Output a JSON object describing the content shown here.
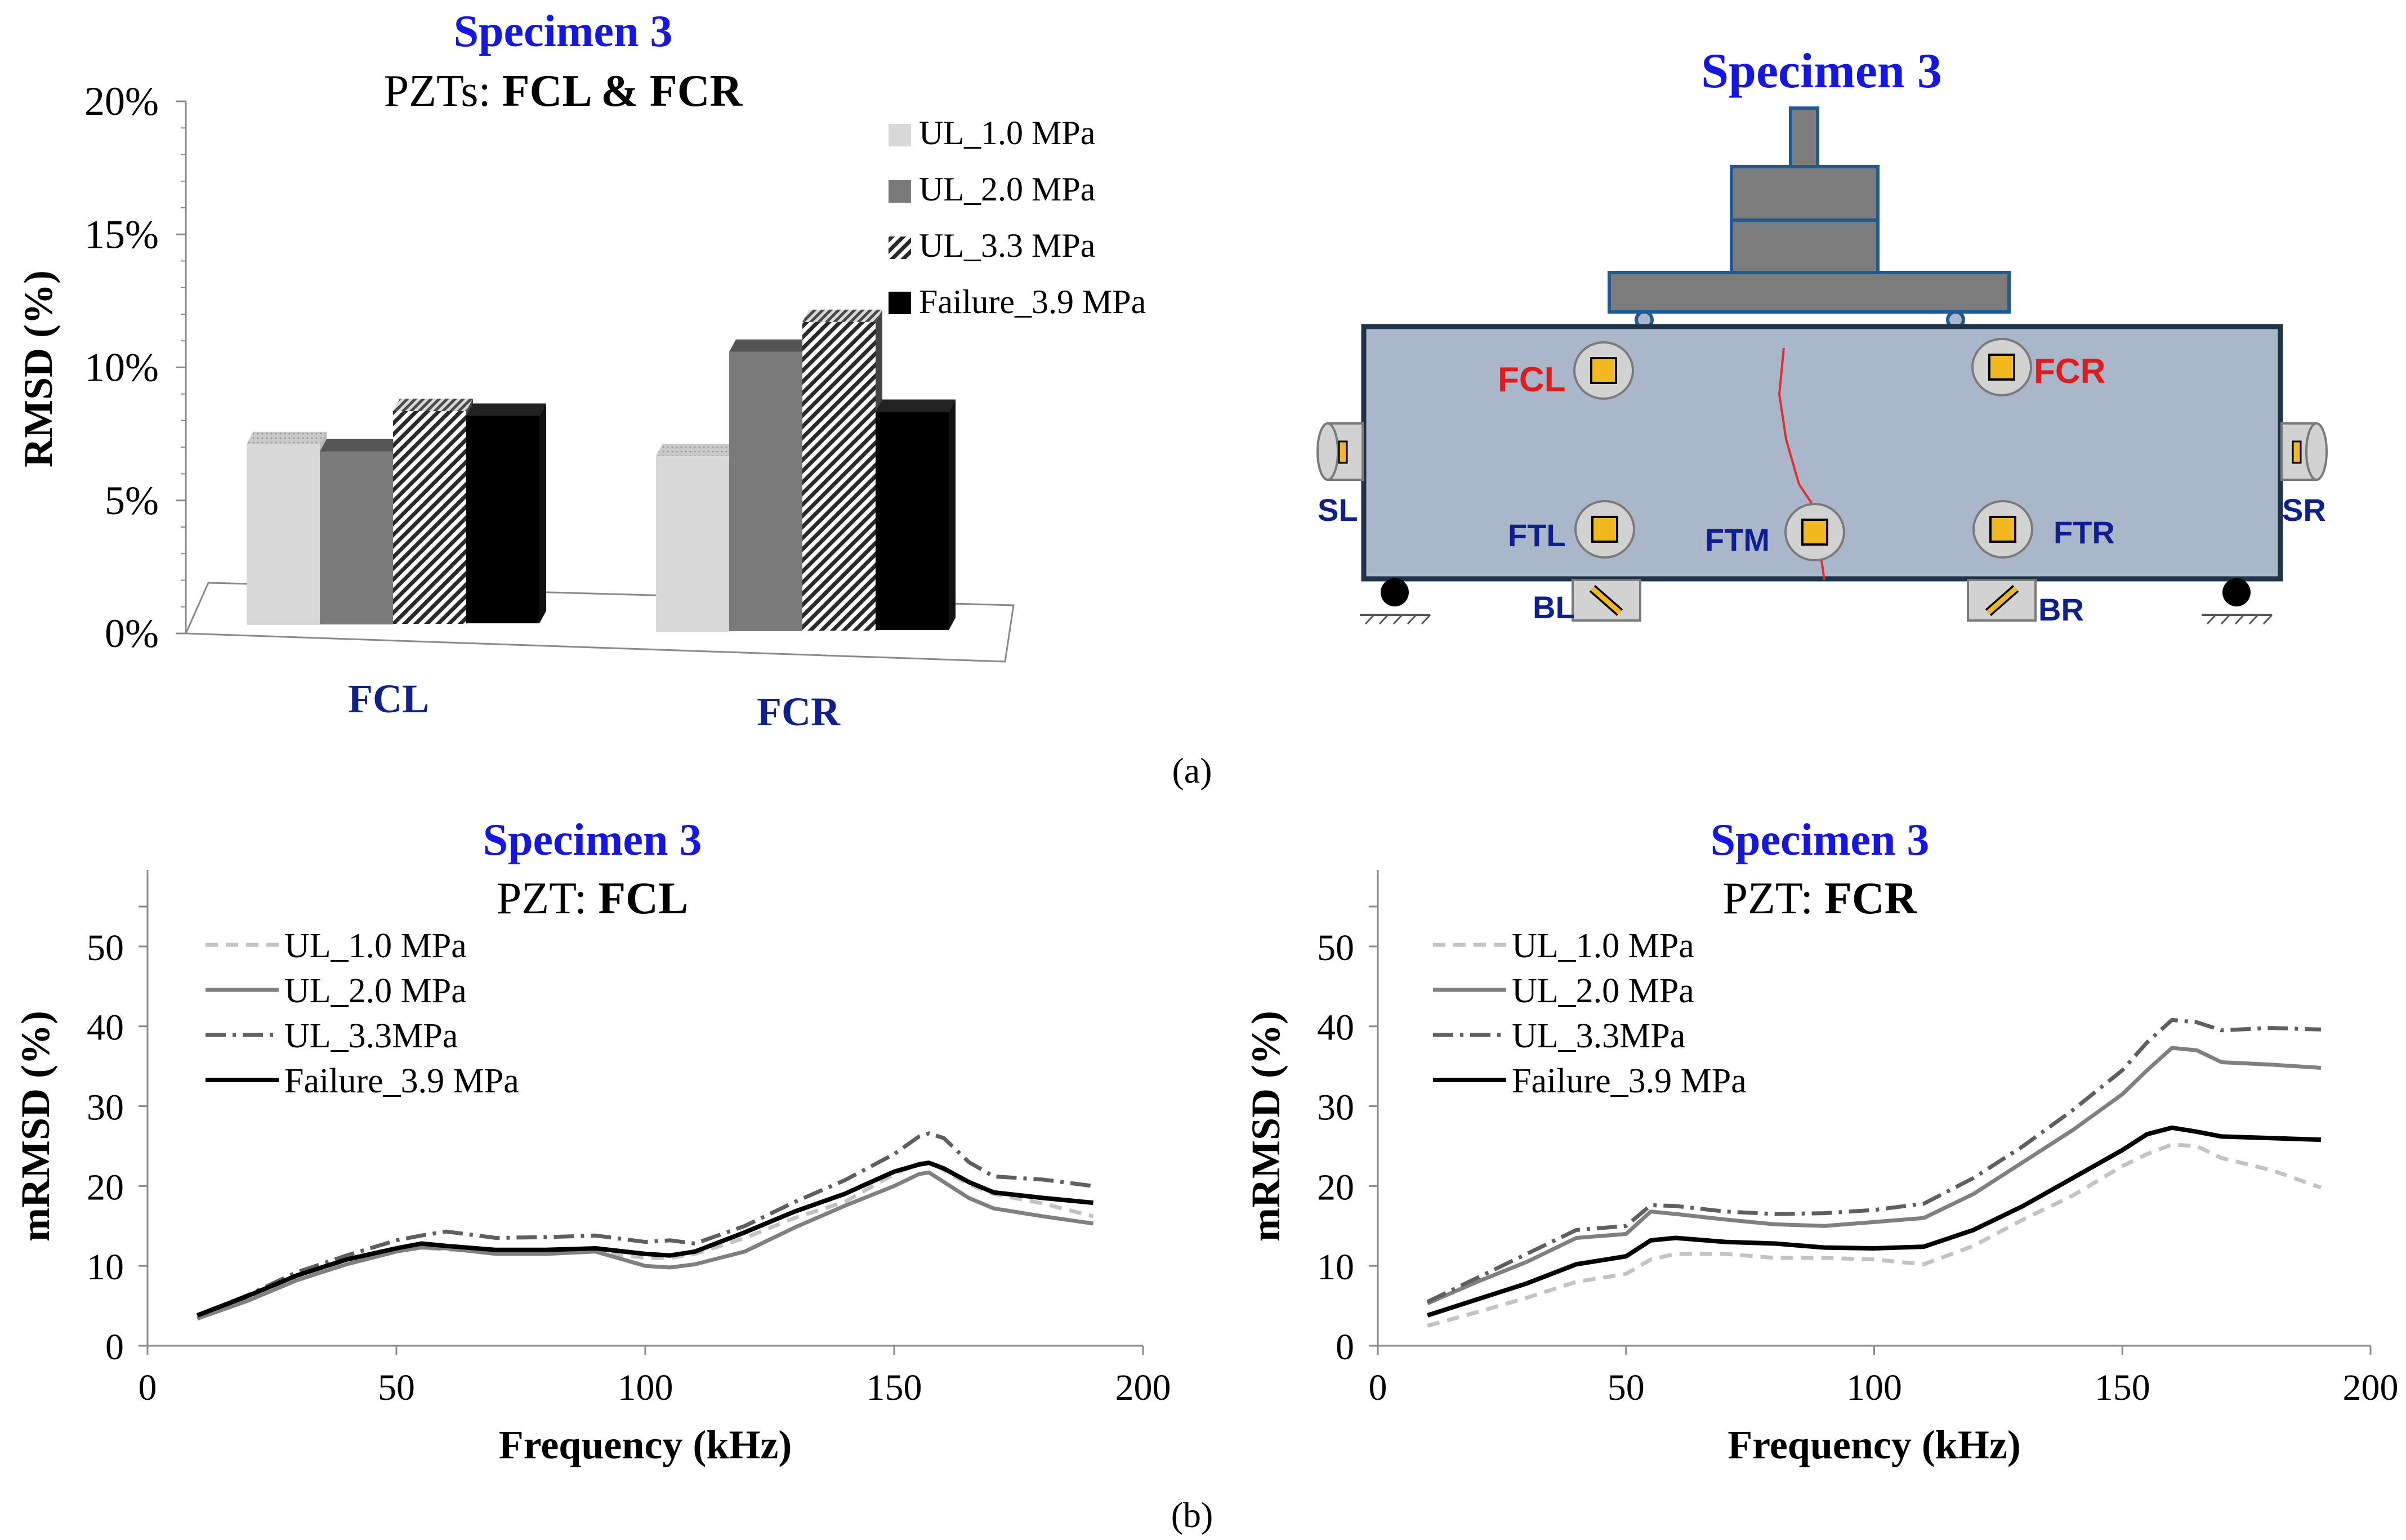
{
  "colors": {
    "title_blue": "#1515e6",
    "label_navy": "#0f1f8f",
    "beam_fill": "#aab7cb",
    "beam_stroke": "#1f3349",
    "steel_fill": "#7c7c7c",
    "steel_stroke": "#1f5a97",
    "pzt_yellow": "#f2b820",
    "red_label": "#e01b1b",
    "crack": "#e0302a"
  },
  "panel_labels": {
    "a": "(a)",
    "b": "(b)"
  },
  "chart_data": [
    {
      "type": "bar",
      "title": "Specimen 3",
      "subtitle_prefix": "PZTs: ",
      "subtitle_bold": "FCL & FCR",
      "xlabel": "",
      "ylabel": "RMSD (%)",
      "ylim": [
        0,
        20
      ],
      "yticks": [
        "0%",
        "5%",
        "10%",
        "15%",
        "20%"
      ],
      "categories": [
        "FCL",
        "FCR"
      ],
      "series": [
        {
          "name": "UL_1.0 MPa",
          "values": [
            6.8,
            6.6
          ],
          "pattern": "light"
        },
        {
          "name": "UL_2.0 MPa",
          "values": [
            6.5,
            10.5
          ],
          "pattern": "dark"
        },
        {
          "name": "UL_3.3 MPa",
          "values": [
            8.0,
            11.6
          ],
          "pattern": "hatched"
        },
        {
          "name": "Failure_3.9 MPa",
          "values": [
            7.8,
            8.2
          ],
          "pattern": "black"
        }
      ],
      "legend_position": "top-right",
      "style": "3d"
    },
    {
      "type": "line",
      "title": "Specimen 3",
      "subtitle_prefix": "PZT: ",
      "subtitle_bold": "FCL",
      "xlabel": "Frequency (kHz)",
      "ylabel": "mRMSD (%)",
      "xlim": [
        0,
        200
      ],
      "ylim": [
        0,
        55
      ],
      "xticks": [
        0,
        50,
        100,
        150,
        200
      ],
      "yticks": [
        0,
        10,
        20,
        30,
        40,
        50
      ],
      "x": [
        10,
        20,
        30,
        40,
        50,
        55,
        60,
        70,
        80,
        90,
        100,
        105,
        110,
        120,
        130,
        140,
        150,
        155,
        157,
        160,
        165,
        170,
        180,
        190
      ],
      "series": [
        {
          "name": "UL_1.0 MPa",
          "style": "dashed",
          "color": "#c3c3c3",
          "values": [
            3.6,
            6.0,
            8.6,
            10.5,
            12.0,
            12.3,
            12.0,
            11.8,
            11.5,
            11.8,
            11.0,
            11.0,
            11.5,
            13.5,
            16.0,
            18.0,
            21.5,
            22.8,
            23.0,
            22.0,
            20.2,
            19.0,
            17.8,
            16.2
          ]
        },
        {
          "name": "UL_2.0 MPa",
          "style": "solid",
          "color": "#808080",
          "values": [
            3.4,
            5.6,
            8.2,
            10.2,
            11.8,
            12.3,
            12.2,
            11.5,
            11.5,
            11.8,
            10.0,
            9.8,
            10.2,
            11.8,
            14.8,
            17.5,
            20.0,
            21.5,
            21.7,
            20.5,
            18.5,
            17.2,
            16.2,
            15.3
          ]
        },
        {
          "name": "UL_3.3MPa",
          "style": "dashdot",
          "color": "#5f5f5f",
          "values": [
            3.8,
            6.3,
            9.2,
            11.3,
            13.2,
            13.8,
            14.3,
            13.5,
            13.6,
            13.8,
            13.0,
            13.2,
            12.8,
            15.0,
            18.0,
            20.7,
            24.0,
            26.2,
            26.6,
            26.0,
            23.0,
            21.2,
            20.8,
            20.0
          ]
        },
        {
          "name": "Failure_3.9 MPa",
          "style": "solid",
          "color": "#000000",
          "values": [
            3.8,
            6.2,
            8.8,
            10.8,
            12.2,
            12.8,
            12.5,
            12.0,
            12.0,
            12.2,
            11.5,
            11.3,
            11.8,
            14.2,
            16.8,
            19.0,
            21.8,
            22.7,
            22.9,
            22.2,
            20.5,
            19.2,
            18.5,
            17.9
          ]
        }
      ],
      "legend_position": "top-left"
    },
    {
      "type": "line",
      "title": "Specimen 3",
      "subtitle_prefix": "PZT: ",
      "subtitle_bold": "FCR",
      "xlabel": "Frequency (kHz)",
      "ylabel": "mRMSD (%)",
      "xlim": [
        0,
        200
      ],
      "ylim": [
        0,
        55
      ],
      "xticks": [
        0,
        50,
        100,
        150,
        200
      ],
      "yticks": [
        0,
        10,
        20,
        30,
        40,
        50
      ],
      "x": [
        10,
        20,
        30,
        40,
        50,
        55,
        60,
        70,
        80,
        90,
        100,
        110,
        120,
        130,
        140,
        150,
        155,
        160,
        165,
        170,
        180,
        190
      ],
      "series": [
        {
          "name": "UL_1.0 MPa",
          "style": "dashed",
          "color": "#c3c3c3",
          "values": [
            2.5,
            4.2,
            6.0,
            8.0,
            9.0,
            10.8,
            11.5,
            11.5,
            11.0,
            11.0,
            10.8,
            10.2,
            12.5,
            15.8,
            18.8,
            22.5,
            24.0,
            25.2,
            25.0,
            23.5,
            22.0,
            19.8
          ]
        },
        {
          "name": "UL_2.0 MPa",
          "style": "solid",
          "color": "#808080",
          "values": [
            5.3,
            8.0,
            10.5,
            13.5,
            14.0,
            16.8,
            16.5,
            15.8,
            15.2,
            15.0,
            15.5,
            16.0,
            19.0,
            23.0,
            27.0,
            31.5,
            34.5,
            37.3,
            37.0,
            35.5,
            35.2,
            34.8
          ]
        },
        {
          "name": "UL_3.3MPa",
          "style": "dashdot",
          "color": "#5f5f5f",
          "values": [
            5.5,
            8.5,
            11.5,
            14.5,
            15.0,
            17.6,
            17.5,
            16.8,
            16.5,
            16.6,
            17.0,
            17.8,
            21.0,
            25.0,
            29.5,
            34.5,
            38.0,
            40.8,
            40.5,
            39.5,
            39.8,
            39.6
          ]
        },
        {
          "name": "Failure_3.9 MPa",
          "style": "solid",
          "color": "#000000",
          "values": [
            3.8,
            5.8,
            7.8,
            10.2,
            11.2,
            13.2,
            13.5,
            13.0,
            12.8,
            12.3,
            12.2,
            12.4,
            14.5,
            17.5,
            21.0,
            24.5,
            26.5,
            27.3,
            26.8,
            26.2,
            26.0,
            25.8
          ]
        }
      ],
      "legend_position": "top-left"
    }
  ],
  "diagram": {
    "title": "Specimen 3",
    "pzt_labels": {
      "fcl": "FCL",
      "fcr": "FCR",
      "ftl": "FTL",
      "ftm": "FTM",
      "ftr": "FTR",
      "sl": "SL",
      "sr": "SR",
      "bl": "BL",
      "br": "BR"
    }
  }
}
